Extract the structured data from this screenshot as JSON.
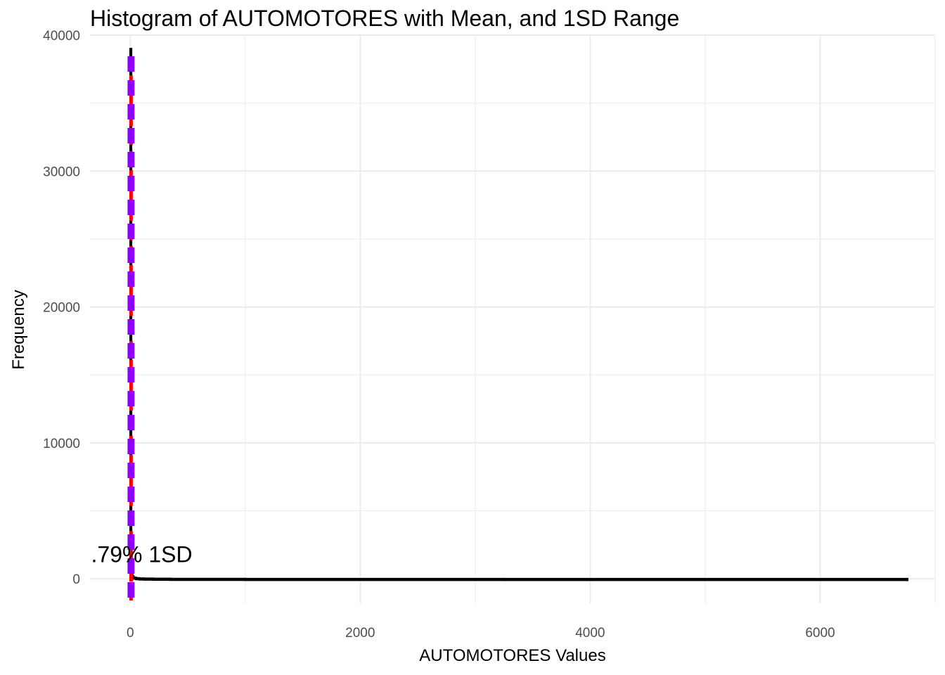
{
  "chart_data": {
    "type": "bar",
    "title": "Histogram of AUTOMOTORES with Mean, and 1SD Range",
    "xlabel": "AUTOMOTORES Values",
    "ylabel": "Frequency",
    "xlim": [
      -350,
      7000
    ],
    "ylim": [
      -1800,
      40000
    ],
    "x_ticks": [
      0,
      2000,
      4000,
      6000
    ],
    "x_tick_labels": [
      "0",
      "2000",
      "4000",
      "6000"
    ],
    "y_ticks": [
      0,
      10000,
      20000,
      30000,
      40000
    ],
    "y_tick_labels": [
      "0",
      "10000",
      "20000",
      "30000",
      "40000"
    ],
    "grid": true,
    "bins": {
      "x": [
        0,
        10,
        20,
        30,
        50,
        80,
        120,
        200,
        350,
        1000,
        3250,
        6750
      ],
      "counts": [
        39000,
        900,
        200,
        100,
        60,
        40,
        30,
        20,
        10,
        5,
        3,
        2
      ]
    },
    "reference_lines": [
      {
        "label": "mean",
        "x": 7,
        "color": "#ff0000",
        "style": "dashed"
      },
      {
        "label": "-1SD",
        "x": -2,
        "color": "#8b00ff",
        "style": "dashed"
      },
      {
        "label": "+1SD",
        "x": 16,
        "color": "#8b00ff",
        "style": "dashed"
      }
    ],
    "annotation": {
      "text": ".79% 1SD",
      "x": 100,
      "y": 1800
    },
    "colors": {
      "bars": "#000000",
      "mean": "#ff0000",
      "sd": "#8b00ff",
      "grid": "#ebebeb"
    }
  }
}
